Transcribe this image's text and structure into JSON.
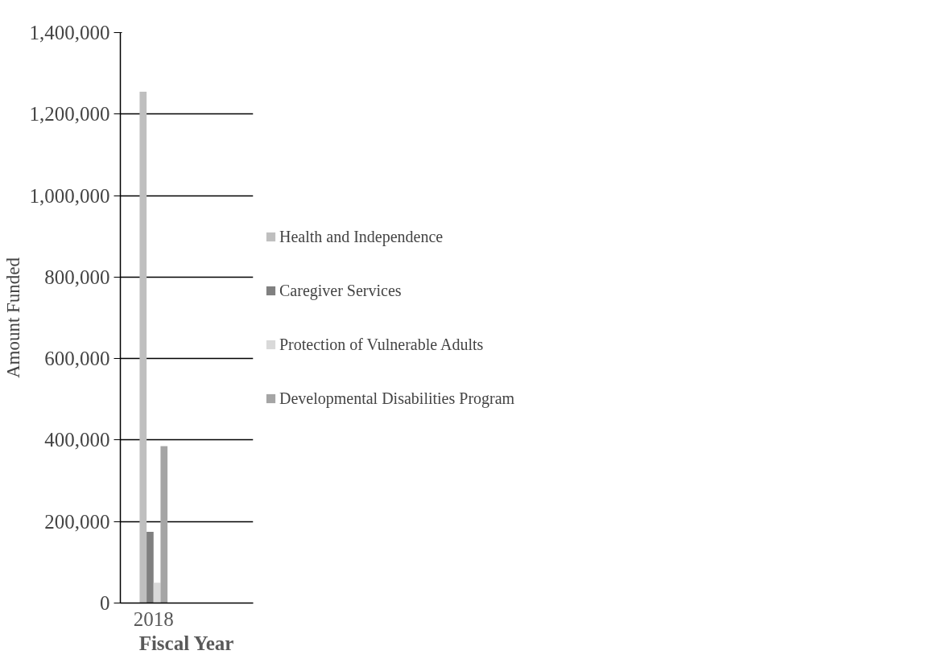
{
  "chart_data": {
    "type": "bar",
    "xlabel": "Fiscal Year",
    "ylabel": "Amount Funded",
    "categories": [
      "2018",
      null
    ],
    "series": [
      {
        "name": "Health and Independence",
        "color": "#bfbfbf",
        "values": [
          1255000,
          null
        ]
      },
      {
        "name": "Caregiver Services",
        "color": "#808080",
        "values": [
          175000,
          null
        ]
      },
      {
        "name": "Protection of Vulnerable Adults",
        "color": "#d9d9d9",
        "values": [
          50000,
          null
        ]
      },
      {
        "name": "Developmental Disabilities Program",
        "color": "#a5a5a5",
        "values": [
          385000,
          null
        ]
      }
    ],
    "ylim": [
      0,
      1400000
    ],
    "yticks": [
      {
        "value": 0,
        "label": "0"
      },
      {
        "value": 200000,
        "label": "200,000"
      },
      {
        "value": 400000,
        "label": "400,000"
      },
      {
        "value": 600000,
        "label": "600,000"
      },
      {
        "value": 800000,
        "label": "800,000"
      },
      {
        "value": 1000000,
        "label": "1,000,000"
      },
      {
        "value": 1200000,
        "label": "1,200,000"
      },
      {
        "value": 1400000,
        "label": "1,400,000"
      }
    ],
    "grid": "y",
    "legend": "right"
  }
}
